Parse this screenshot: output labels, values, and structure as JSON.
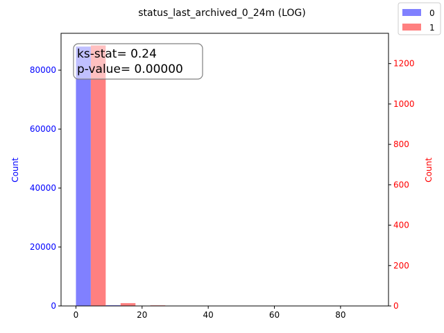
{
  "chart_data": {
    "type": "bar",
    "title": "status_last_archived_0_24m (LOG)",
    "xlabel": "",
    "xlim": [
      -4.5,
      94.5
    ],
    "x_ticks": [
      "0",
      "20",
      "40",
      "60",
      "80"
    ],
    "left_axis": {
      "label": "Count",
      "color": "#0000ff",
      "ylim": [
        0,
        92500
      ],
      "ticks": [
        "0",
        "20000",
        "40000",
        "60000",
        "80000"
      ]
    },
    "right_axis": {
      "label": "Count",
      "color": "#ff0000",
      "ylim": [
        0,
        1350
      ],
      "ticks": [
        "0",
        "200",
        "400",
        "600",
        "800",
        "1000",
        "1200"
      ]
    },
    "bin_edges": [
      0,
      9,
      18,
      27,
      36,
      45,
      54,
      63,
      72,
      81,
      90
    ],
    "series": [
      {
        "name": "0",
        "axis": "left",
        "color": "#8080ff",
        "values": [
          88000,
          250,
          60,
          20,
          10,
          5,
          3,
          2,
          1,
          1
        ]
      },
      {
        "name": "1",
        "axis": "right",
        "color": "#ff8080",
        "values": [
          1290,
          14,
          3,
          1,
          0,
          0,
          0,
          0,
          0,
          0
        ]
      }
    ],
    "legend_position": "top-right",
    "annotation": {
      "line1": "ks-stat= 0.24",
      "line2": "p-value= 0.00000"
    }
  }
}
